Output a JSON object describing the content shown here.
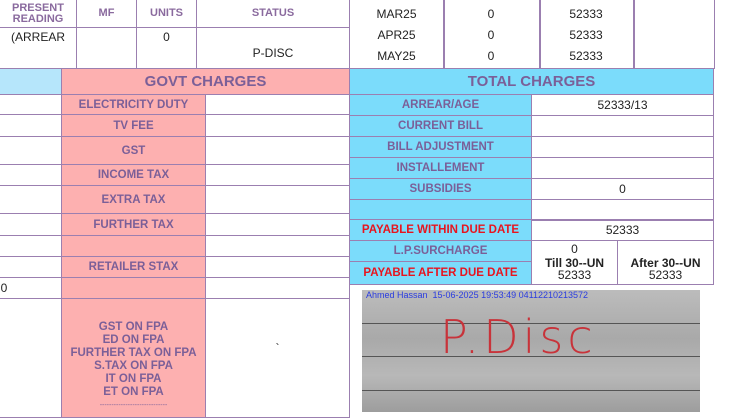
{
  "reading_table": {
    "headers": [
      "PRESENT READING",
      "MF",
      "UNITS",
      "STATUS"
    ],
    "row": [
      "(ARREAR",
      "",
      "0",
      "P-DISC"
    ]
  },
  "history": [
    {
      "month": "MAR25",
      "units": "0",
      "bill": "52333"
    },
    {
      "month": "APR25",
      "units": "0",
      "bill": "52333"
    },
    {
      "month": "MAY25",
      "units": "0",
      "bill": "52333"
    }
  ],
  "govt": {
    "title": "GOVT CHARGES",
    "items": [
      "ELECTRICITY DUTY",
      "TV FEE",
      "GST",
      "INCOME TAX",
      "EXTRA TAX",
      "FURTHER TAX",
      "",
      "RETAILER STAX",
      "",
      ""
    ],
    "fpa": [
      "GST ON FPA",
      "ED ON FPA",
      "FURTHER TAX ON FPA",
      "S.TAX ON FPA",
      "IT ON FPA",
      "ET ON FPA",
      "-----------------------------"
    ],
    "fpa_value": "`"
  },
  "left_partial": "0",
  "total": {
    "title": "TOTAL CHARGES",
    "items": [
      {
        "label": "ARREAR/AGE",
        "value": "52333/13"
      },
      {
        "label": "CURRENT BILL",
        "value": ""
      },
      {
        "label": "BILL ADJUSTMENT",
        "value": ""
      },
      {
        "label": "INSTALLEMENT",
        "value": ""
      },
      {
        "label": "SUBSIDIES",
        "value": "0"
      },
      {
        "label": "",
        "value": ""
      }
    ],
    "payable_within_label": "PAYABLE WITHIN DUE DATE",
    "payable_within": "52333",
    "lp_label": "L.P.SURCHARGE",
    "lp_value": "0",
    "payable_after_label": "PAYABLE AFTER DUE DATE",
    "till_label": "Till 30--UN",
    "till_value": "52333",
    "after_label": "After 30--UN",
    "after_value": "52333"
  },
  "photo": {
    "caption": "Ahmed Hassan  15-06-2025 19:53:49 04112210213572",
    "text": "P.Disc"
  },
  "colors": {
    "pink": "#fdb0b0",
    "cyan": "#7bdcfb",
    "red": "#e8141e",
    "purple": "#7b5f98"
  }
}
